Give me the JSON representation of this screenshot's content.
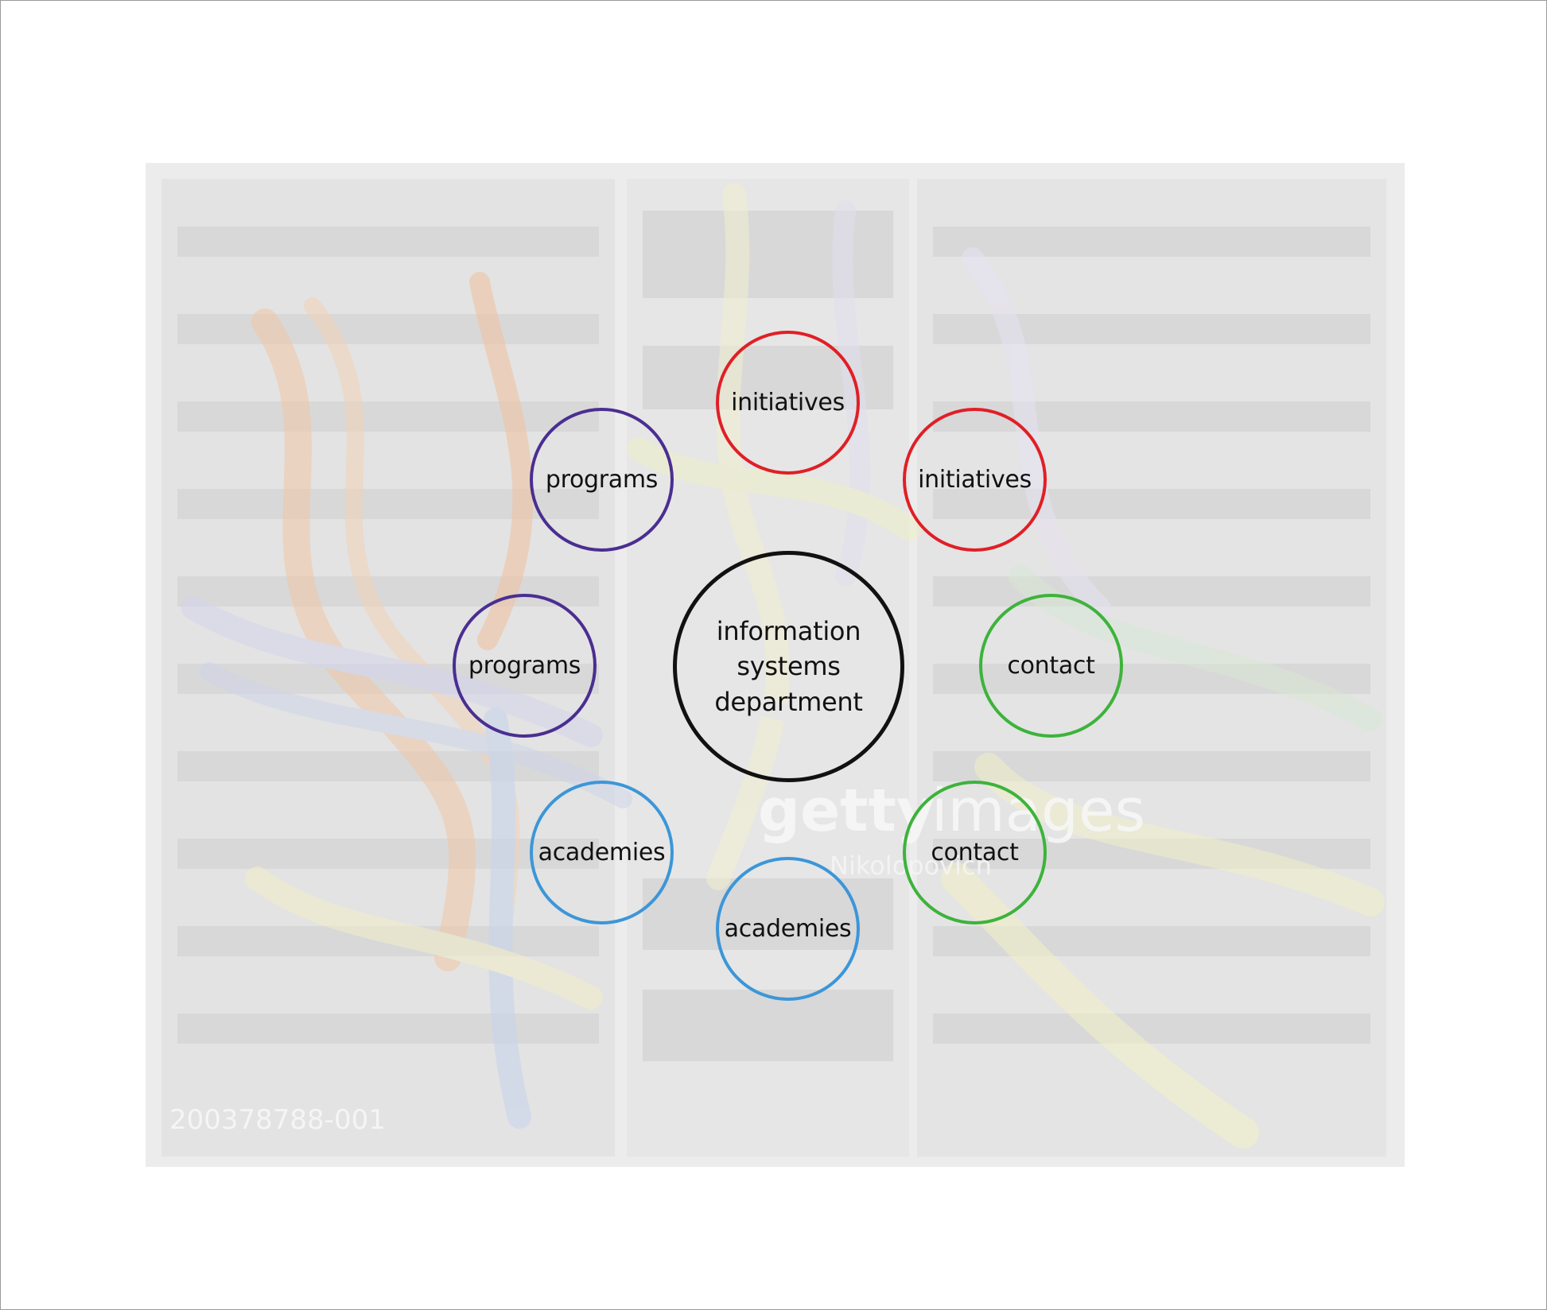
{
  "diagram": {
    "center": {
      "label": "information\nsystems\ndepartment",
      "color": "#111111"
    },
    "nodes": [
      {
        "id": "initiatives-top",
        "label": "initiatives",
        "color": "#e01f26"
      },
      {
        "id": "initiatives-right",
        "label": "initiatives",
        "color": "#e01f26"
      },
      {
        "id": "contact-right",
        "label": "contact",
        "color": "#3db33b"
      },
      {
        "id": "contact-bottom-right",
        "label": "contact",
        "color": "#3db33b"
      },
      {
        "id": "academies-bottom",
        "label": "academies",
        "color": "#3c96d8"
      },
      {
        "id": "academies-bottom-left",
        "label": "academies",
        "color": "#3c96d8"
      },
      {
        "id": "programs-left",
        "label": "programs",
        "color": "#4a2e91"
      },
      {
        "id": "programs-top-left",
        "label": "programs",
        "color": "#4a2e91"
      }
    ]
  },
  "background": {
    "watermark_brand": "gettyimages",
    "watermark_credit": "Nikolopovich",
    "image_code": "200378788-001"
  }
}
